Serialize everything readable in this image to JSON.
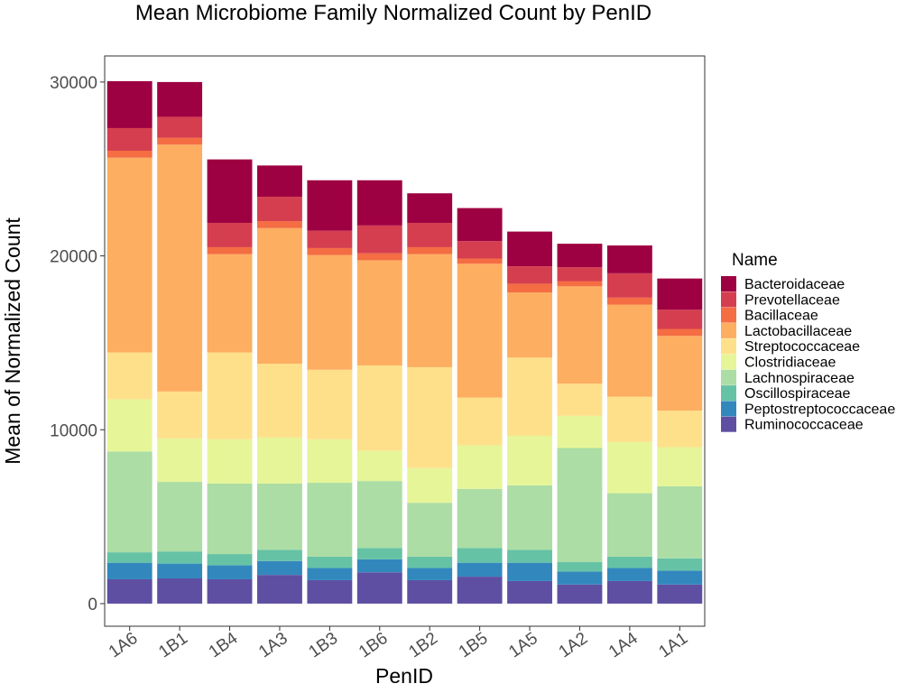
{
  "chart_data": {
    "type": "bar",
    "stacked": true,
    "title": "Mean Microbiome Family Normalized Count by PenID",
    "xlabel": "PenID",
    "ylabel": "Mean of Normalized Count",
    "ylim": [
      -1300,
      31500
    ],
    "yticks": [
      0,
      10000,
      20000,
      30000
    ],
    "grid": false,
    "legend_position": "right",
    "legend_title": "Name",
    "categories": [
      "1A6",
      "1B1",
      "1B4",
      "1A3",
      "1B3",
      "1B6",
      "1B2",
      "1B5",
      "1A5",
      "1A2",
      "1A4",
      "1A1"
    ],
    "series": [
      {
        "name": "Ruminococcaceae",
        "color": "#5E4FA2",
        "values": [
          1400,
          1450,
          1400,
          1650,
          1350,
          1800,
          1350,
          1550,
          1300,
          1100,
          1300,
          1100
        ]
      },
      {
        "name": "Peptostreptococcaceae",
        "color": "#3288BD",
        "values": [
          950,
          850,
          800,
          800,
          700,
          750,
          700,
          800,
          1050,
          750,
          750,
          800
        ]
      },
      {
        "name": "Oscillospiraceae",
        "color": "#66C2A5",
        "values": [
          600,
          700,
          650,
          650,
          650,
          650,
          650,
          850,
          750,
          550,
          650,
          700
        ]
      },
      {
        "name": "Lachnospiraceae",
        "color": "#ABDDA4",
        "values": [
          5800,
          4000,
          4050,
          3800,
          4250,
          3850,
          3100,
          3400,
          3700,
          6550,
          3650,
          4150
        ]
      },
      {
        "name": "Clostridiaceae",
        "color": "#E6F598",
        "values": [
          3000,
          2500,
          2550,
          2650,
          2500,
          1750,
          2000,
          2500,
          2850,
          1850,
          2950,
          2250
        ]
      },
      {
        "name": "Streptococcaceae",
        "color": "#FEE08B",
        "values": [
          2700,
          2700,
          5000,
          4250,
          4000,
          4900,
          5800,
          2750,
          4500,
          1850,
          2600,
          2100
        ]
      },
      {
        "name": "Lactobacillaceae",
        "color": "#FDAE61",
        "values": [
          11200,
          14200,
          5650,
          7800,
          6600,
          6050,
          6500,
          7700,
          3750,
          5600,
          5300,
          4300
        ]
      },
      {
        "name": "Bacillaceae",
        "color": "#F46D43",
        "values": [
          400,
          400,
          400,
          400,
          400,
          400,
          400,
          300,
          500,
          300,
          400,
          400
        ]
      },
      {
        "name": "Prevotellaceae",
        "color": "#D53E4F",
        "values": [
          1300,
          1200,
          1400,
          1400,
          1000,
          1600,
          1400,
          1000,
          1000,
          800,
          1400,
          1100
        ]
      },
      {
        "name": "Bacteroidaceae",
        "color": "#9E0142",
        "values": [
          2700,
          2000,
          3650,
          1800,
          2900,
          2600,
          1700,
          1900,
          2000,
          1350,
          1600,
          1800
        ]
      }
    ]
  }
}
